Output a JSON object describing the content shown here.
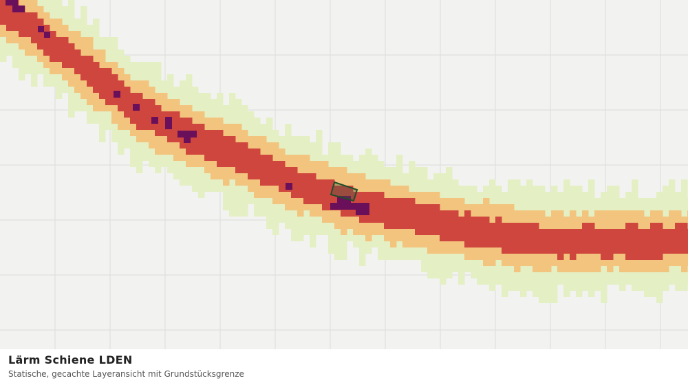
{
  "legend": {
    "title": "Lärm Schiene LDEN",
    "subtitle": "Statische, gecachte Layeransicht mit Grundstücksgrenze"
  }
}
